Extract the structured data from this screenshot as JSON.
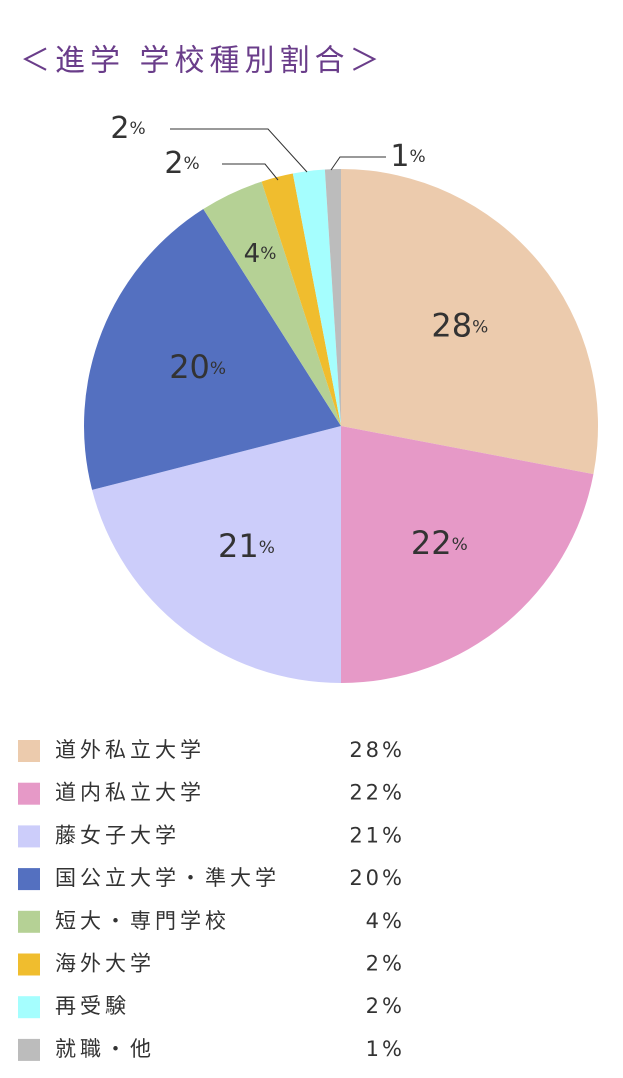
{
  "chart_data": {
    "type": "pie",
    "title": "＜進学 学校種別割合＞",
    "categories": [
      "道外私立大学",
      "道内私立大学",
      "藤女子大学",
      "国公立大学・準大学",
      "短大・専門学校",
      "海外大学",
      "再受験",
      "就職・他"
    ],
    "values": [
      28,
      22,
      21,
      20,
      4,
      2,
      2,
      1
    ],
    "value_labels": [
      "28%",
      "22%",
      "21%",
      "20%",
      "4%",
      "2%",
      "2%",
      "1%"
    ],
    "colors": [
      "#eccbad",
      "#e699c7",
      "#cccdfa",
      "#5470c0",
      "#b5d195",
      "#f0bd2e",
      "#a5fefe",
      "#bcbcbc"
    ]
  }
}
